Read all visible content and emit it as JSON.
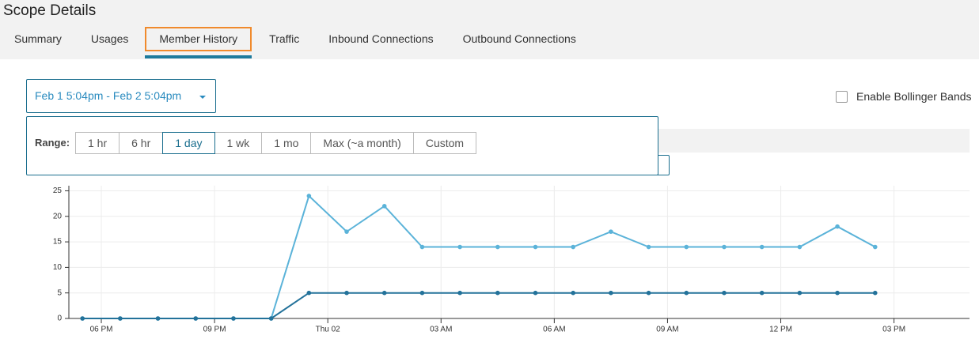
{
  "header": {
    "title": "Scope Details"
  },
  "tabs": [
    "Summary",
    "Usages",
    "Member History",
    "Traffic",
    "Inbound Connections",
    "Outbound Connections"
  ],
  "active_tab": 2,
  "date_range": {
    "label": "Feb 1 5:04pm - Feb 2 5:04pm"
  },
  "range": {
    "label": "Range:",
    "options": [
      "1 hr",
      "6 hr",
      "1 day",
      "1 wk",
      "1 mo",
      "Max (~a month)",
      "Custom"
    ],
    "selected": 2
  },
  "bollinger": {
    "label": "Enable Bollinger Bands",
    "checked": false
  },
  "chart_data": {
    "type": "line",
    "x": [
      17.5,
      18.5,
      19.5,
      20.5,
      21.5,
      22.5,
      23.5,
      24.5,
      25.5,
      26.5,
      27.5,
      28.5,
      29.5,
      30.5,
      31.5,
      32.5,
      33.5,
      34.5,
      35.5,
      36.5,
      37.5,
      38.5
    ],
    "series": [
      {
        "color": "#5bb3d9",
        "values": [
          0,
          0,
          0,
          0,
          0,
          0,
          24,
          17,
          22,
          14,
          14,
          14,
          14,
          14,
          17,
          14,
          14,
          14,
          14,
          14,
          18,
          14
        ]
      },
      {
        "color": "#23729a",
        "values": [
          0,
          0,
          0,
          0,
          0,
          0,
          5,
          5,
          5,
          5,
          5,
          5,
          5,
          5,
          5,
          5,
          5,
          5,
          5,
          5,
          5,
          5
        ]
      }
    ],
    "xlim": [
      17.14,
      41
    ],
    "ylim": [
      0,
      26
    ],
    "xticks": [
      {
        "value": 18,
        "label": "06 PM"
      },
      {
        "value": 21,
        "label": "09 PM"
      },
      {
        "value": 24,
        "label": "Thu 02"
      },
      {
        "value": 27,
        "label": "03 AM"
      },
      {
        "value": 30,
        "label": "06 AM"
      },
      {
        "value": 33,
        "label": "09 AM"
      },
      {
        "value": 36,
        "label": "12 PM"
      },
      {
        "value": 39,
        "label": "03 PM"
      }
    ],
    "yticks": [
      0,
      5,
      10,
      15,
      20,
      25
    ],
    "grid": true
  }
}
